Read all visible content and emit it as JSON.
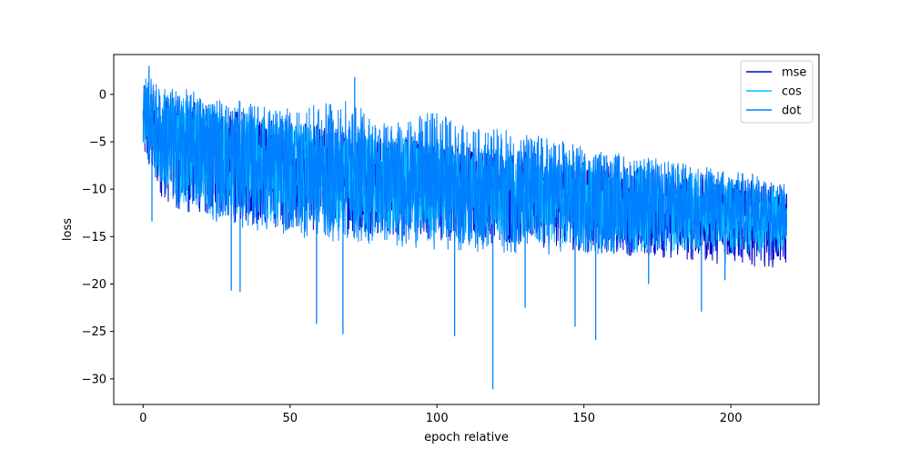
{
  "chart_data": {
    "type": "line",
    "title": "",
    "xlabel": "epoch relative",
    "ylabel": "loss",
    "xlim": [
      -10,
      230
    ],
    "ylim": [
      -32.7,
      4.2
    ],
    "xticks": [
      0,
      50,
      100,
      150,
      200
    ],
    "yticks": [
      0,
      -5,
      -10,
      -15,
      -20,
      -25,
      -30
    ],
    "grid": false,
    "legend_position": "top-right",
    "series": [
      {
        "name": "mse",
        "color": "#0000cd",
        "x": [
          0,
          5,
          10,
          20,
          30,
          40,
          50,
          60,
          70,
          80,
          90,
          100,
          110,
          120,
          130,
          140,
          150,
          160,
          170,
          180,
          190,
          200,
          210,
          219
        ],
        "upper": [
          1.0,
          0.5,
          0.0,
          -0.8,
          -1.5,
          -2.2,
          -2.8,
          -3.3,
          -3.8,
          -4.2,
          -4.5,
          -4.8,
          -5.2,
          -5.6,
          -6.0,
          -6.4,
          -6.8,
          -7.2,
          -7.6,
          -8.0,
          -8.4,
          -8.8,
          -9.2,
          -9.6
        ],
        "lower": [
          -7.5,
          -10.5,
          -12.0,
          -13.0,
          -13.5,
          -14.0,
          -14.3,
          -14.5,
          -14.8,
          -15.0,
          -15.2,
          -15.4,
          -15.6,
          -15.8,
          -16.0,
          -16.3,
          -16.6,
          -16.9,
          -17.2,
          -17.5,
          -17.8,
          -18.0,
          -18.2,
          -18.4
        ]
      },
      {
        "name": "cos",
        "color": "#00bfff",
        "x": [
          0,
          5,
          10,
          20,
          30,
          40,
          50,
          60,
          70,
          80,
          90,
          100,
          110,
          120,
          130,
          140,
          150,
          160,
          170,
          180,
          190,
          200,
          210,
          219
        ],
        "upper": [
          1.0,
          0.5,
          0.0,
          -0.8,
          -1.5,
          -2.2,
          -2.8,
          -3.3,
          -3.8,
          -4.2,
          -4.5,
          -4.8,
          -5.2,
          -5.6,
          -6.0,
          -6.4,
          -6.8,
          -7.2,
          -7.6,
          -8.0,
          -8.4,
          -8.8,
          -9.2,
          -9.6
        ],
        "lower": [
          -5.0,
          -9.0,
          -11.0,
          -12.5,
          -13.0,
          -13.5,
          -14.0,
          -14.3,
          -14.6,
          -14.8,
          -15.0,
          -15.2,
          -15.4,
          -15.6,
          -15.8,
          -16.0,
          -16.2,
          -16.4,
          -16.5,
          -16.6,
          -16.7,
          -16.8,
          -16.8,
          -16.8
        ]
      },
      {
        "name": "dot",
        "color": "#0080ff",
        "x": [
          0,
          5,
          10,
          20,
          30,
          40,
          50,
          60,
          70,
          80,
          90,
          100,
          110,
          120,
          130,
          140,
          150,
          160,
          170,
          180,
          190,
          200,
          210,
          219
        ],
        "upper": [
          2.5,
          1.2,
          0.8,
          0.3,
          -0.5,
          -1.0,
          -1.5,
          -1.0,
          -0.5,
          -2.5,
          -2.8,
          -1.5,
          -3.5,
          -3.5,
          -4.0,
          -4.5,
          -5.5,
          -6.0,
          -6.5,
          -7.0,
          -7.5,
          -8.0,
          -8.5,
          -9.5
        ],
        "lower": [
          -6.0,
          -10.0,
          -12.0,
          -13.0,
          -14.0,
          -14.5,
          -15.0,
          -15.5,
          -15.8,
          -16.0,
          -16.2,
          -16.4,
          -16.6,
          -16.8,
          -16.9,
          -17.0,
          -17.0,
          -17.0,
          -16.8,
          -16.5,
          -16.3,
          -16.0,
          -15.8,
          -15.5
        ],
        "spikes": [
          {
            "x": 2,
            "y": 3.0
          },
          {
            "x": 72,
            "y": 1.8
          },
          {
            "x": 3,
            "y": -13.4
          },
          {
            "x": 30,
            "y": -20.7
          },
          {
            "x": 33,
            "y": -20.8
          },
          {
            "x": 59,
            "y": -24.2
          },
          {
            "x": 68,
            "y": -25.3
          },
          {
            "x": 106,
            "y": -25.5
          },
          {
            "x": 119,
            "y": -31.1
          },
          {
            "x": 130,
            "y": -22.5
          },
          {
            "x": 147,
            "y": -24.5
          },
          {
            "x": 154,
            "y": -25.9
          },
          {
            "x": 190,
            "y": -22.9
          },
          {
            "x": 198,
            "y": -19.6
          },
          {
            "x": 172,
            "y": -20.0
          }
        ]
      }
    ]
  }
}
